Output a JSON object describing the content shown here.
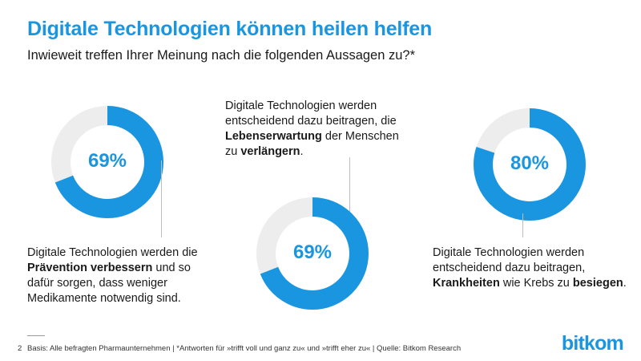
{
  "header": {
    "title": "Digitale Technologien können heilen helfen",
    "subtitle": "Inwieweit treffen Ihrer Meinung nach die folgenden Aussagen zu?*"
  },
  "colors": {
    "accent": "#1a96e0",
    "track": "#ededed"
  },
  "chart_data": {
    "type": "pie",
    "subtype": "donut",
    "series": [
      {
        "name": "Prävention",
        "value": 69,
        "label": "69%",
        "statement": [
          [
            {
              "t": "Digitale Technologien werden die",
              "b": false
            }
          ],
          [
            {
              "t": "Prävention verbessern",
              "b": true
            },
            {
              "t": " und so",
              "b": false
            }
          ],
          [
            {
              "t": "dafür sorgen, dass weniger",
              "b": false
            }
          ],
          [
            {
              "t": "Medikamente notwendig sind.",
              "b": false
            }
          ]
        ]
      },
      {
        "name": "Lebenserwartung",
        "value": 69,
        "label": "69%",
        "statement": [
          [
            {
              "t": "Digitale Technologien werden",
              "b": false
            }
          ],
          [
            {
              "t": "entscheidend dazu beitragen, die",
              "b": false
            }
          ],
          [
            {
              "t": "Lebenserwartung",
              "b": true
            },
            {
              "t": " der Menschen",
              "b": false
            }
          ],
          [
            {
              "t": "zu ",
              "b": false
            },
            {
              "t": "verlängern",
              "b": true
            },
            {
              "t": ".",
              "b": false
            }
          ]
        ]
      },
      {
        "name": "Krankheiten",
        "value": 80,
        "label": "80%",
        "statement": [
          [
            {
              "t": "Digitale Technologien werden",
              "b": false
            }
          ],
          [
            {
              "t": "entscheidend dazu beitragen,",
              "b": false
            }
          ],
          [
            {
              "t": "Krankheiten",
              "b": true
            },
            {
              "t": " wie Krebs zu ",
              "b": false
            },
            {
              "t": "besiegen",
              "b": true
            },
            {
              "t": ".",
              "b": false
            }
          ]
        ]
      }
    ]
  },
  "footer": {
    "page": "2",
    "source": "Basis: Alle befragten Pharmaunternehmen | *Antworten für »trifft voll und ganz zu« und »trifft eher zu« | Quelle: Bitkom Research"
  },
  "brand": {
    "logo": "bitkom"
  }
}
